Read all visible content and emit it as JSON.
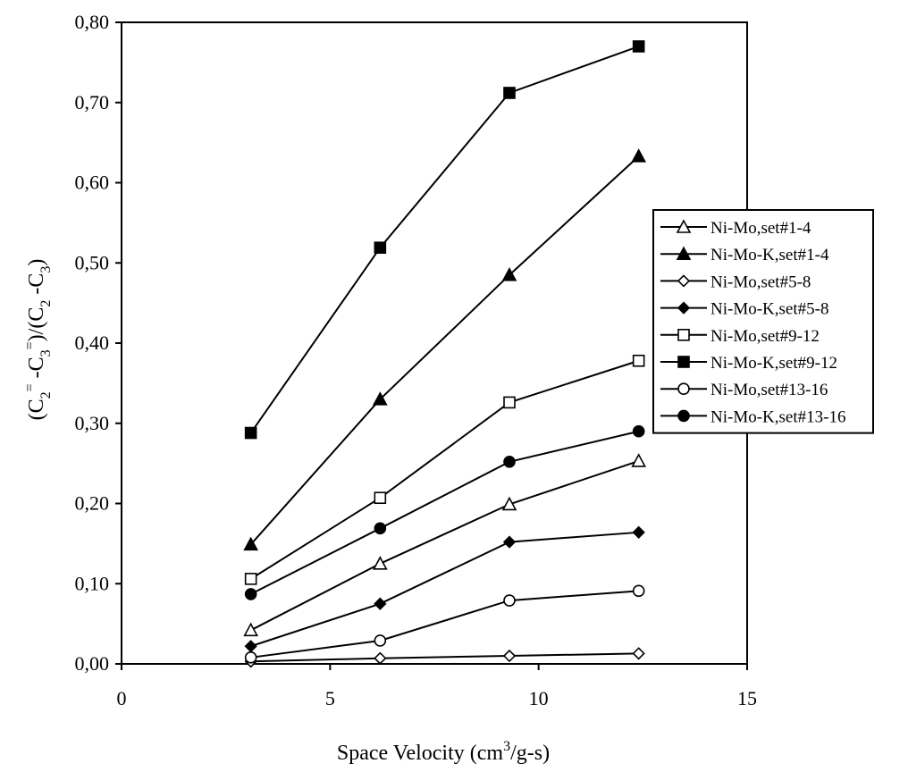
{
  "chart_data": {
    "type": "line",
    "xlabel": "Space Velocity (cm3/g-s)",
    "ylabel": "(C2=-C3=)/(C2-C3)",
    "xlabel_parts": [
      {
        "text": "Space Velocity (cm",
        "sup": false
      },
      {
        "text": "3",
        "sup": true
      },
      {
        "text": "/g-s)",
        "sup": false
      }
    ],
    "ylabel_parts": [
      {
        "text": "(C",
        "shift": "none"
      },
      {
        "text": "2",
        "shift": "sub"
      },
      {
        "text": "=",
        "shift": "sup"
      },
      {
        "text": " -C",
        "shift": "none"
      },
      {
        "text": "3",
        "shift": "sub"
      },
      {
        "text": "=",
        "shift": "sup"
      },
      {
        "text": ")/(C",
        "shift": "none"
      },
      {
        "text": "2",
        "shift": "sub"
      },
      {
        "text": " -C",
        "shift": "none"
      },
      {
        "text": "3",
        "shift": "sub"
      },
      {
        "text": ")",
        "shift": "none"
      }
    ],
    "xlim": [
      0,
      15
    ],
    "ylim": [
      0,
      0.8
    ],
    "xticks": [
      0,
      5,
      10,
      15
    ],
    "xtick_labels": [
      "0",
      "5",
      "10",
      "15"
    ],
    "yticks": [
      0,
      0.1,
      0.2,
      0.3,
      0.4,
      0.5,
      0.6,
      0.7,
      0.8
    ],
    "ytick_labels": [
      "0,00",
      "0,10",
      "0,20",
      "0,30",
      "0,40",
      "0,50",
      "0,60",
      "0,70",
      "0,80"
    ],
    "grid": false,
    "legend_position": "right",
    "x": [
      3.1,
      6.2,
      9.3,
      12.4
    ],
    "series": [
      {
        "name": "Ni-Mo,set#1-4",
        "marker": "triangle",
        "filled": false,
        "values": [
          0.042,
          0.125,
          0.199,
          0.253
        ]
      },
      {
        "name": "Ni-Mo-K,set#1-4",
        "marker": "triangle",
        "filled": true,
        "values": [
          0.149,
          0.33,
          0.485,
          0.633
        ]
      },
      {
        "name": "Ni-Mo,set#5-8",
        "marker": "diamond",
        "filled": false,
        "values": [
          0.003,
          0.007,
          0.01,
          0.013
        ]
      },
      {
        "name": "Ni-Mo-K,set#5-8",
        "marker": "diamond",
        "filled": true,
        "values": [
          0.022,
          0.075,
          0.152,
          0.164
        ]
      },
      {
        "name": "Ni-Mo,set#9-12",
        "marker": "square",
        "filled": false,
        "values": [
          0.106,
          0.207,
          0.326,
          0.378
        ]
      },
      {
        "name": "Ni-Mo-K,set#9-12",
        "marker": "square",
        "filled": true,
        "values": [
          0.288,
          0.519,
          0.712,
          0.77
        ]
      },
      {
        "name": "Ni-Mo,set#13-16",
        "marker": "circle",
        "filled": false,
        "values": [
          0.008,
          0.029,
          0.079,
          0.091
        ]
      },
      {
        "name": "Ni-Mo-K,set#13-16",
        "marker": "circle",
        "filled": true,
        "values": [
          0.087,
          0.169,
          0.252,
          0.29
        ]
      }
    ]
  },
  "colors": {
    "line": "#000000",
    "background": "#ffffff"
  }
}
